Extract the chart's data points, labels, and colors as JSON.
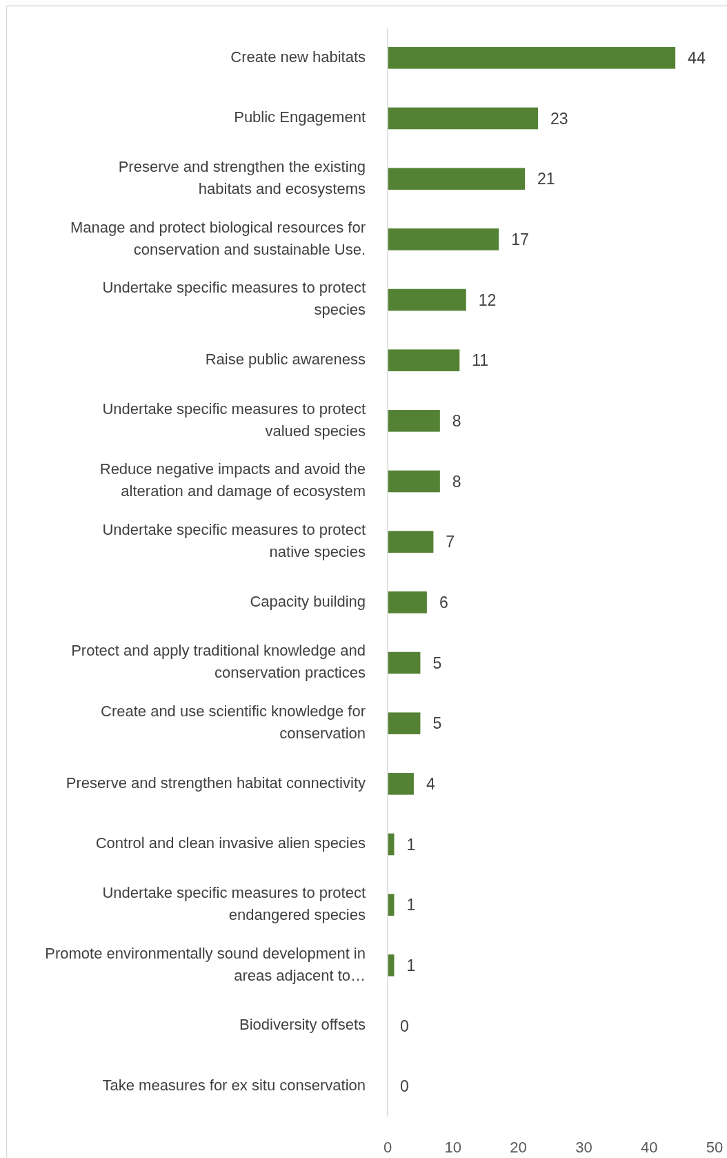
{
  "chart_data": {
    "type": "bar",
    "orientation": "horizontal",
    "categories": [
      "Create new habitats",
      "Public Engagement",
      "Preserve and strengthen the existing habitats and ecosystems",
      "Manage and protect biological resources for conservation and sustainable Use.",
      "Undertake specific measures to protect species",
      "Raise public awareness",
      "Undertake specific measures to protect valued species",
      "Reduce negative impacts and avoid the alteration and damage of ecosystem",
      "Undertake specific measures to protect native species",
      "Capacity building",
      "Protect and apply traditional knowledge and conservation practices",
      "Create and use scientific knowledge for conservation",
      "Preserve and strengthen habitat connectivity",
      "Control and clean invasive alien species",
      "Undertake specific measures to protect endangered species",
      "Promote environmentally sound development in areas adjacent to…",
      "Biodiversity offsets",
      "Take measures for ex situ conservation"
    ],
    "values": [
      44,
      23,
      21,
      17,
      12,
      11,
      8,
      8,
      7,
      6,
      5,
      5,
      4,
      1,
      1,
      1,
      0,
      0
    ],
    "color": "#548235",
    "data_labels": true,
    "xlim": [
      0,
      50
    ],
    "xticks": [
      0,
      10,
      20,
      30,
      40,
      50
    ],
    "grid": false
  }
}
